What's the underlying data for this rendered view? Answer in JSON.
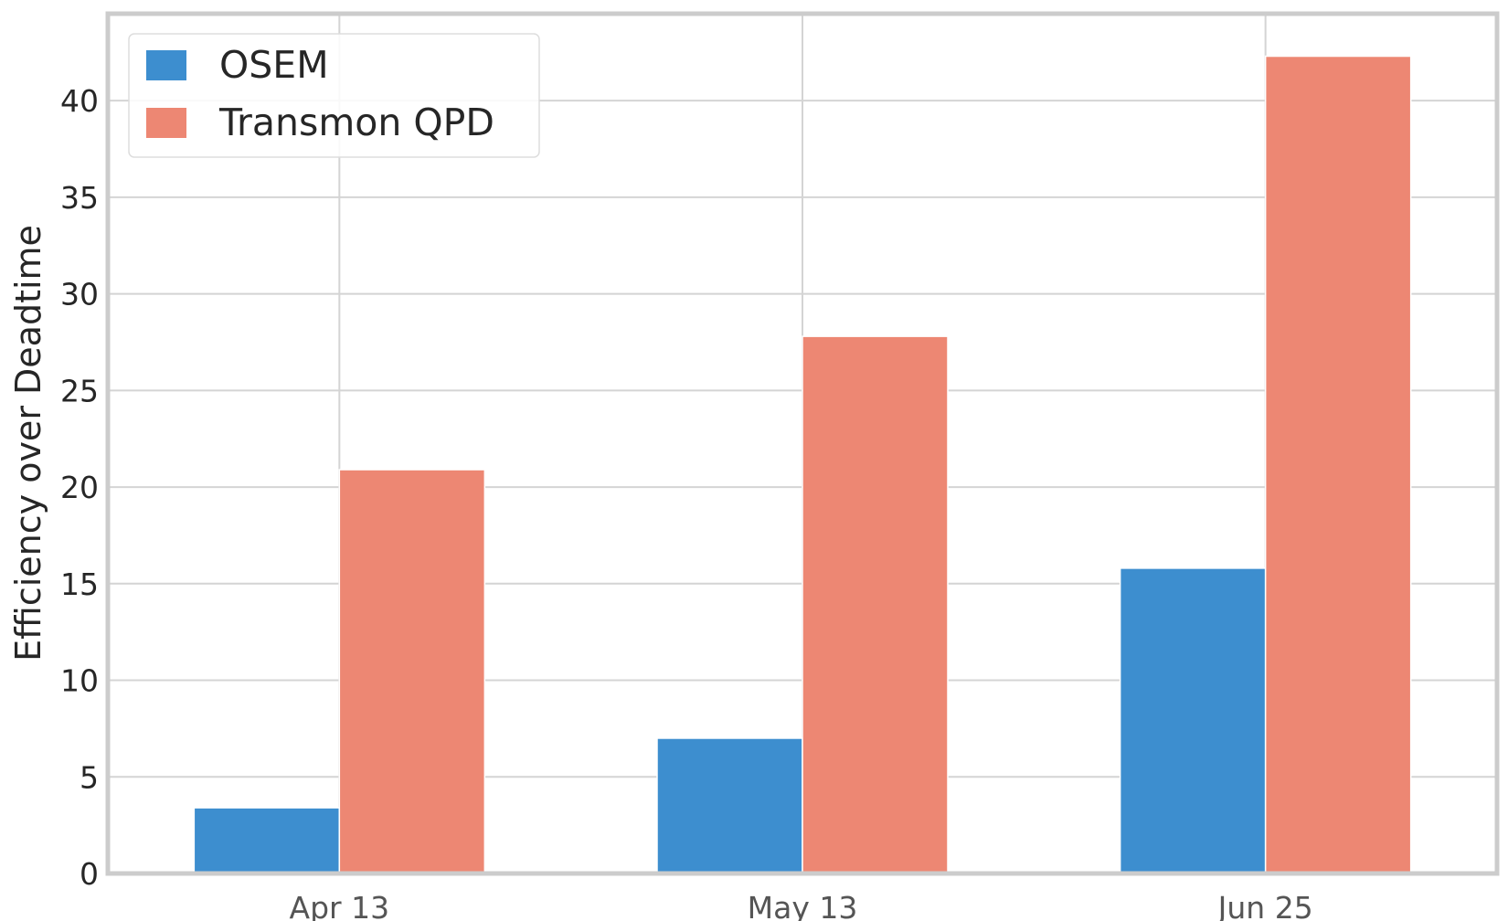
{
  "chart_data": {
    "type": "bar",
    "categories": [
      "Apr 13",
      "May 13",
      "Jun 25"
    ],
    "series": [
      {
        "name": "OSEM",
        "values": [
          3.4,
          7.0,
          15.8
        ],
        "color": "#3d8ecf"
      },
      {
        "name": "Transmon QPD",
        "values": [
          20.9,
          27.8,
          42.3
        ],
        "color": "#ed8773"
      }
    ],
    "title": "",
    "xlabel": "",
    "ylabel": "Efficiency over Deadtime",
    "ylim": [
      0,
      44.5
    ],
    "yticks": [
      0,
      5,
      10,
      15,
      20,
      25,
      30,
      35,
      40
    ],
    "grid": true,
    "legend_position": "top-left"
  }
}
